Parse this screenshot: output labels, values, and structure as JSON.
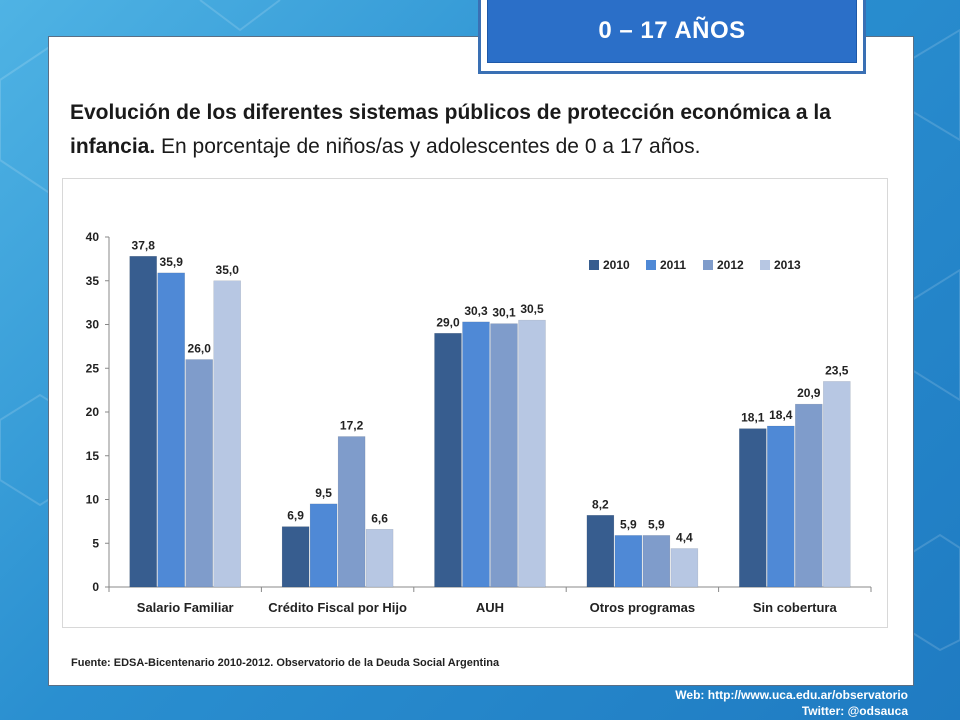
{
  "badge": "0 – 17 AÑOS",
  "title_bold": "Evolución de los diferentes sistemas públicos de protección económica a la infancia.",
  "title_rest": " En porcentaje de niños/as y adolescentes de 0 a 17 años.",
  "source": "Fuente: EDSA-Bicentenario 2010-2012.  Observatorio de la Deuda Social Argentina",
  "footer": {
    "web": "Web: http://www.uca.edu.ar/observatorio",
    "twitter": "Twitter: @odsauca"
  },
  "colors": {
    "background": "#2a8fd0",
    "badge": "#2b6fc8"
  },
  "chart_data": {
    "type": "bar",
    "categories": [
      "Salario Familiar",
      "Crédito Fiscal por Hijo",
      "AUH",
      "Otros programas",
      "Sin cobertura"
    ],
    "series": [
      {
        "name": "2010",
        "color": "#375d8f",
        "values": [
          37.8,
          6.9,
          29.0,
          8.2,
          18.1
        ],
        "labels": [
          "37,8",
          "6,9",
          "29,0",
          "8,2",
          "18,1"
        ]
      },
      {
        "name": "2011",
        "color": "#4f89d6",
        "values": [
          35.9,
          9.5,
          30.3,
          5.9,
          18.4
        ],
        "labels": [
          "35,9",
          "9,5",
          "30,3",
          "5,9",
          "18,4"
        ]
      },
      {
        "name": "2012",
        "color": "#7f9ccb",
        "values": [
          26.0,
          17.2,
          30.1,
          5.9,
          20.9
        ],
        "labels": [
          "26,0",
          "17,2",
          "30,1",
          "5,9",
          "20,9"
        ]
      },
      {
        "name": "2013",
        "color": "#b7c7e3",
        "values": [
          35.0,
          6.6,
          30.5,
          4.4,
          23.5
        ],
        "labels": [
          "35,0",
          "6,6",
          "30,5",
          "4,4",
          "23,5"
        ]
      }
    ],
    "ylim": [
      0,
      40
    ],
    "yticks": [
      0,
      5,
      10,
      15,
      20,
      25,
      30,
      35,
      40
    ],
    "grid": false,
    "legend": "top-right",
    "xlabel": "",
    "ylabel": ""
  }
}
